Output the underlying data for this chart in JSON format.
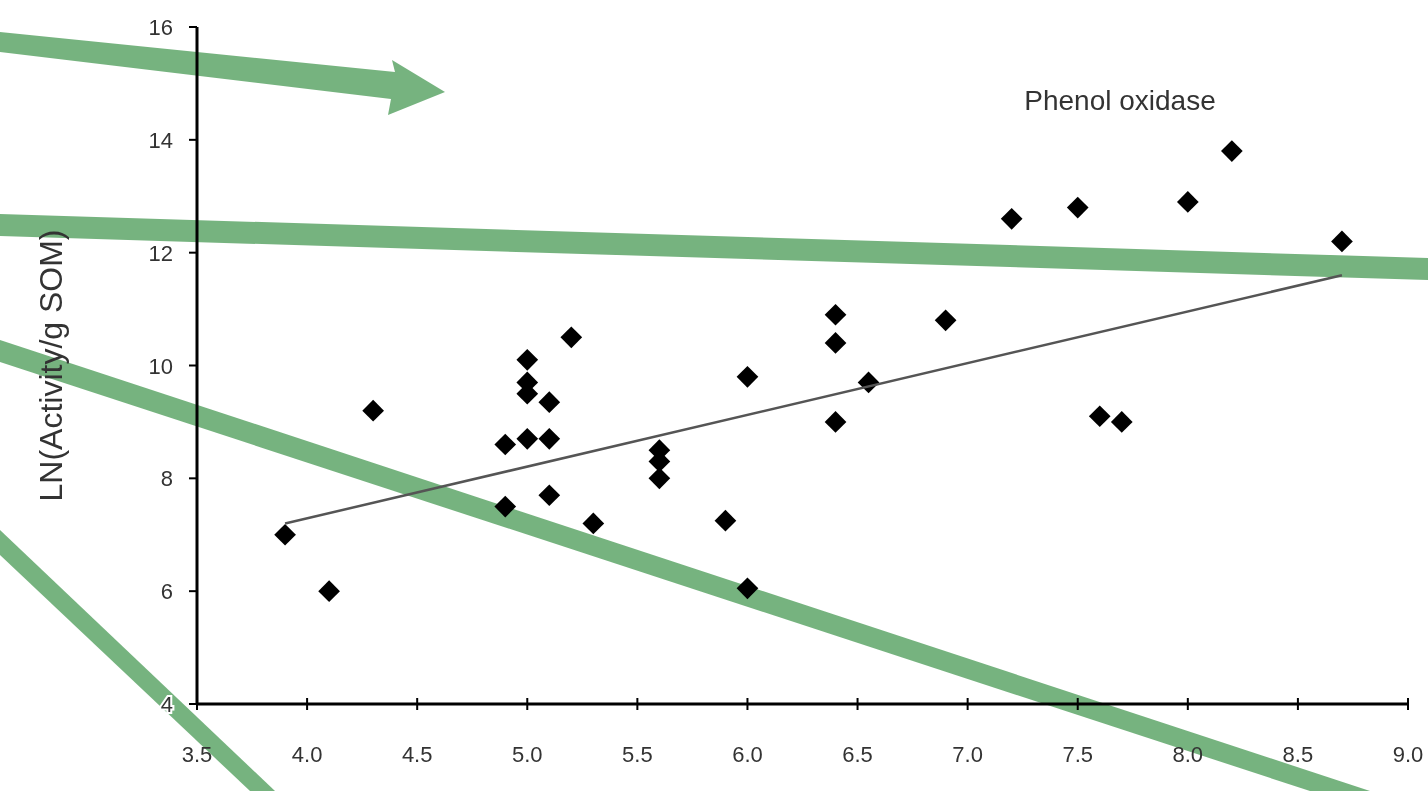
{
  "chart_data": {
    "type": "scatter",
    "title": "Phenol oxidase",
    "ylabel": "LN(Activity/g SOM)",
    "xlim": [
      3.5,
      9.0
    ],
    "xticks": [
      {
        "value": 3.5,
        "label": "3.5"
      },
      {
        "value": 4,
        "label": "4.0"
      },
      {
        "value": 4.5,
        "label": "4.5"
      },
      {
        "value": 5,
        "label": "5.0"
      },
      {
        "value": 5.5,
        "label": "5.5"
      },
      {
        "value": 6,
        "label": "6.0"
      },
      {
        "value": 6.5,
        "label": "6.5"
      },
      {
        "value": 7,
        "label": "7.0"
      },
      {
        "value": 7.5,
        "label": "7.5"
      },
      {
        "value": 8,
        "label": "8.0"
      },
      {
        "value": 8.5,
        "label": "8.5"
      },
      {
        "value": 9,
        "label": "9.0"
      }
    ],
    "ylim": [
      4,
      16
    ],
    "yticks": [
      4,
      6,
      8,
      10,
      12,
      14,
      16
    ],
    "grid": false,
    "series": [
      {
        "color": "#000000",
        "marker": "diamond",
        "x": [
          3.9,
          4.1,
          4.3,
          4.9,
          4.9,
          5.0,
          5.0,
          5.0,
          5.0,
          5.1,
          5.1,
          5.1,
          5.2,
          5.3,
          5.6,
          5.6,
          5.6,
          5.9,
          6.0,
          6.0,
          6.4,
          6.4,
          6.4,
          6.55,
          6.9,
          7.2,
          7.5,
          7.6,
          7.7,
          8.0,
          8.2,
          8.7
        ],
        "values": [
          7.0,
          6.0,
          9.2,
          8.6,
          7.5,
          10.1,
          9.7,
          9.5,
          8.7,
          9.35,
          8.7,
          7.7,
          10.5,
          7.2,
          8.5,
          8.3,
          8.0,
          7.25,
          9.8,
          6.05,
          10.9,
          10.4,
          9.0,
          9.7,
          10.8,
          12.6,
          12.8,
          9.1,
          9.0,
          12.9,
          13.8,
          12.2
        ]
      },
      {
        "type": "line",
        "color": "#555555",
        "marker": "none",
        "line_style": "solid",
        "x": [
          3.9,
          8.7
        ],
        "values": [
          7.2,
          11.6
        ]
      }
    ]
  }
}
